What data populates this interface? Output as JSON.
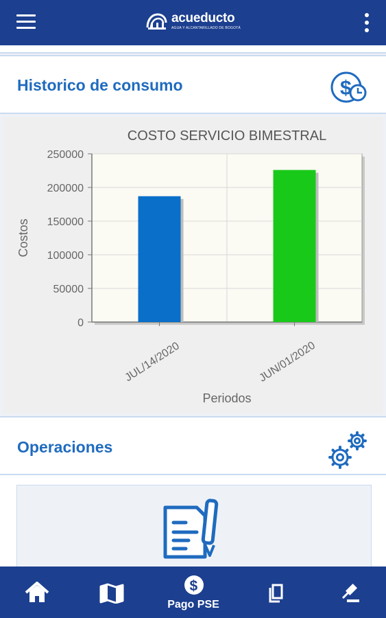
{
  "app": {
    "brand_name": "acueducto",
    "brand_subtitle": "AGUA Y ALCANTARILLADO DE BOGOTÁ"
  },
  "sections": {
    "historico": {
      "title": "Historico de consumo",
      "icon": "dollar-clock-icon"
    },
    "operaciones": {
      "title": "Operaciones",
      "icon": "gears-icon"
    }
  },
  "chart_data": {
    "type": "bar",
    "title": "COSTO SERVICIO BIMESTRAL",
    "xlabel": "Periodos",
    "ylabel": "Costos",
    "categories": [
      "JUL/14/2020",
      "JUN/01/2020"
    ],
    "values": [
      187000,
      226000
    ],
    "colors": [
      "#0a6fc9",
      "#19c919"
    ],
    "ylim": [
      0,
      250000
    ],
    "yticks": [
      0,
      50000,
      100000,
      150000,
      200000,
      250000
    ],
    "grid": true
  },
  "operations": {
    "card_icon": "document-pen-icon"
  },
  "bottom_nav": {
    "items": [
      {
        "icon": "home-icon"
      },
      {
        "icon": "map-icon"
      },
      {
        "icon": "dollar-circle-icon",
        "label": "Pago PSE"
      },
      {
        "icon": "copy-icon"
      },
      {
        "icon": "gavel-icon"
      }
    ]
  },
  "colors": {
    "primary": "#1c3f8f",
    "accent": "#1f6bbf",
    "bar_blue": "#0a6fc9",
    "bar_green": "#19c919"
  }
}
